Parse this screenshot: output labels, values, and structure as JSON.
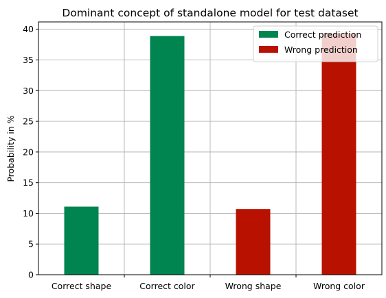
{
  "chart_data": {
    "type": "bar",
    "title": "Dominant concept of standalone model for test dataset",
    "xlabel": "",
    "ylabel": "Probability in %",
    "categories": [
      "Correct shape",
      "Correct color",
      "Wrong shape",
      "Wrong color"
    ],
    "values": [
      11.1,
      38.9,
      10.7,
      39.3
    ],
    "bar_group": [
      "Correct prediction",
      "Correct prediction",
      "Wrong prediction",
      "Wrong prediction"
    ],
    "ylim": [
      0,
      41.2
    ],
    "yticks": [
      0,
      5,
      10,
      15,
      20,
      25,
      30,
      35,
      40
    ],
    "grid": true,
    "legend_position": "top-right",
    "legend": [
      {
        "label": "Correct prediction",
        "color": "#008450"
      },
      {
        "label": "Wrong prediction",
        "color": "#b81100"
      }
    ]
  }
}
